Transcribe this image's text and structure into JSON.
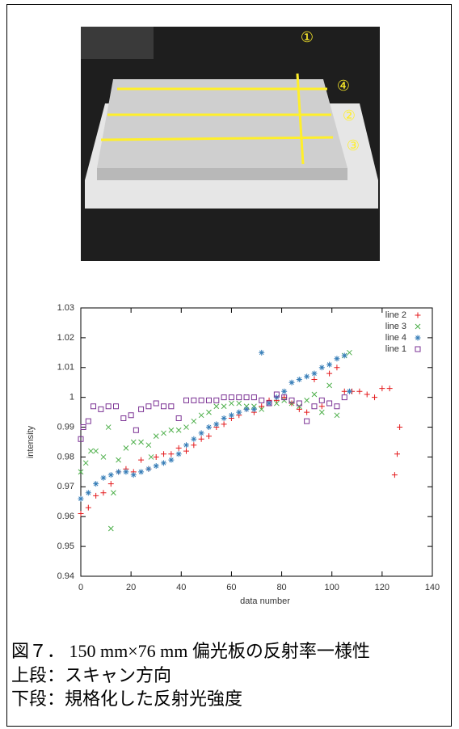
{
  "photo": {
    "labels": [
      "①",
      "④",
      "②",
      "③"
    ]
  },
  "chart_data": {
    "type": "scatter",
    "xlabel": "data number",
    "ylabel": "intensity",
    "xlim": [
      0,
      140
    ],
    "xticks": [
      0,
      20,
      40,
      60,
      80,
      100,
      120,
      140
    ],
    "ylim": [
      0.94,
      1.03
    ],
    "yticks": [
      0.94,
      0.95,
      0.96,
      0.97,
      0.98,
      0.99,
      1,
      1.01,
      1.02,
      1.03
    ],
    "legend": "top-right",
    "series": [
      {
        "name": "line 2",
        "color": "#e41a1c",
        "marker": "plus",
        "x": [
          0,
          3,
          6,
          9,
          12,
          15,
          18,
          21,
          24,
          27,
          30,
          33,
          36,
          39,
          42,
          45,
          48,
          51,
          54,
          57,
          60,
          63,
          66,
          69,
          72,
          75,
          78,
          81,
          84,
          87,
          90,
          93,
          96,
          99,
          102,
          105,
          108,
          111,
          114,
          117,
          120,
          123,
          125,
          126,
          127
        ],
        "values": [
          0.961,
          0.963,
          0.967,
          0.968,
          0.971,
          0.975,
          0.976,
          0.975,
          0.979,
          0.976,
          0.98,
          0.981,
          0.981,
          0.983,
          0.982,
          0.984,
          0.986,
          0.987,
          0.99,
          0.991,
          0.993,
          0.994,
          0.996,
          0.995,
          0.997,
          0.999,
          0.999,
          1.0,
          0.998,
          0.996,
          0.995,
          1.006,
          0.997,
          1.008,
          1.01,
          1.002,
          1.002,
          1.002,
          1.001,
          1.0,
          1.003,
          1.003,
          0.974,
          0.981,
          0.99
        ]
      },
      {
        "name": "line 3",
        "color": "#4daf4a",
        "marker": "cross",
        "x": [
          0,
          2,
          4,
          6,
          9,
          11,
          12,
          13,
          15,
          18,
          21,
          24,
          27,
          28,
          30,
          33,
          36,
          39,
          42,
          45,
          48,
          51,
          54,
          57,
          60,
          63,
          66,
          69,
          72,
          75,
          78,
          81,
          84,
          87,
          90,
          93,
          96,
          99,
          102,
          105,
          107
        ],
        "values": [
          0.975,
          0.978,
          0.982,
          0.982,
          0.98,
          0.99,
          0.956,
          0.968,
          0.979,
          0.983,
          0.985,
          0.985,
          0.984,
          0.98,
          0.987,
          0.988,
          0.989,
          0.989,
          0.99,
          0.992,
          0.994,
          0.995,
          0.997,
          0.997,
          0.998,
          0.998,
          0.997,
          0.997,
          0.996,
          0.998,
          0.998,
          0.999,
          0.998,
          0.997,
          0.999,
          1.001,
          0.995,
          1.004,
          0.994,
          1.014,
          1.015
        ]
      },
      {
        "name": "line 4",
        "color": "#377eb8",
        "marker": "star",
        "x": [
          0,
          3,
          6,
          9,
          12,
          15,
          18,
          21,
          24,
          27,
          30,
          33,
          36,
          39,
          42,
          45,
          48,
          51,
          54,
          57,
          60,
          63,
          66,
          69,
          72,
          75,
          78,
          81,
          84,
          87,
          90,
          93,
          96,
          99,
          102,
          105,
          107
        ],
        "values": [
          0.966,
          0.968,
          0.971,
          0.973,
          0.974,
          0.975,
          0.975,
          0.974,
          0.975,
          0.976,
          0.977,
          0.978,
          0.979,
          0.981,
          0.984,
          0.986,
          0.988,
          0.99,
          0.991,
          0.993,
          0.994,
          0.995,
          0.996,
          0.996,
          1.015,
          0.998,
          1.0,
          1.002,
          1.005,
          1.006,
          1.007,
          1.008,
          1.01,
          1.011,
          1.013,
          1.014,
          1.002
        ]
      },
      {
        "name": "line 1",
        "color": "#7b3294",
        "marker": "square",
        "x": [
          0,
          1,
          3,
          5,
          8,
          11,
          14,
          17,
          20,
          22,
          24,
          27,
          30,
          33,
          36,
          39,
          42,
          45,
          48,
          51,
          54,
          57,
          60,
          63,
          66,
          69,
          72,
          75,
          78,
          81,
          84,
          87,
          90,
          93,
          96,
          99,
          102,
          105
        ],
        "values": [
          0.986,
          0.99,
          0.992,
          0.997,
          0.996,
          0.997,
          0.997,
          0.993,
          0.994,
          0.989,
          0.996,
          0.997,
          0.998,
          0.997,
          0.997,
          0.993,
          0.999,
          0.999,
          0.999,
          0.999,
          0.999,
          1.0,
          1.0,
          1.0,
          1.0,
          1.0,
          0.999,
          0.998,
          1.001,
          1.0,
          0.999,
          0.998,
          0.992,
          0.997,
          0.999,
          0.998,
          0.997,
          1.0
        ]
      }
    ]
  },
  "caption": [
    "図７． 150 mm×76 mm 偏光板の反射率一様性",
    "上段：スキャン方向",
    "下段：規格化した反射光強度"
  ]
}
